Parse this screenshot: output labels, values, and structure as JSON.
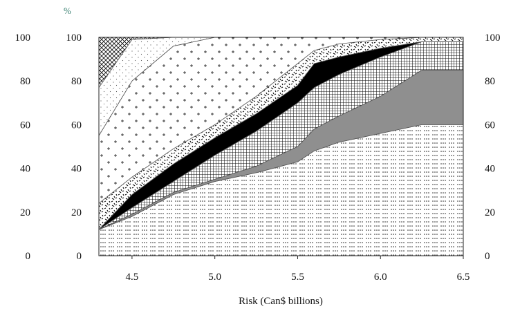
{
  "chart_data": {
    "type": "area",
    "stacked": true,
    "x": [
      4.3,
      4.5,
      4.75,
      5.0,
      5.25,
      5.5,
      5.6,
      5.75,
      6.0,
      6.25,
      6.5
    ],
    "xlim": [
      4.3,
      6.5
    ],
    "ylim": [
      0,
      100
    ],
    "x_ticks": [
      "4.5",
      "5.0",
      "5.5",
      "6.0",
      "6.5"
    ],
    "y_ticks_left_outer": [
      "0",
      "20",
      "40",
      "60",
      "80",
      "100"
    ],
    "y_ticks_left_inner": [
      "0",
      "20",
      "40",
      "60",
      "80",
      "100"
    ],
    "y_ticks_right": [
      "0",
      "20",
      "40",
      "60",
      "80",
      "100"
    ],
    "y_unit": "%",
    "xlabel": "Risk (Can$ billions)",
    "grid": false,
    "legend": "none",
    "series": [
      {
        "pattern": "dots-fine",
        "cumulative": [
          12,
          18,
          28,
          34,
          38,
          43,
          48,
          52,
          56,
          60,
          60
        ]
      },
      {
        "pattern": "solid-gray",
        "cumulative": [
          12,
          19,
          29,
          35,
          41,
          50,
          58,
          64,
          73,
          85,
          85
        ]
      },
      {
        "pattern": "crosshatch-grid",
        "cumulative": [
          12,
          22,
          34,
          46,
          57,
          70,
          77,
          83,
          91,
          98,
          98
        ]
      },
      {
        "pattern": "solid-black",
        "cumulative": [
          12,
          28,
          42,
          54,
          65,
          78,
          88,
          91,
          95,
          98,
          98
        ]
      },
      {
        "pattern": "confetti",
        "cumulative": [
          24,
          36,
          49,
          60,
          73,
          88,
          94,
          97,
          99,
          100,
          100
        ]
      },
      {
        "pattern": "plus",
        "cumulative": [
          55,
          80,
          96,
          100,
          100,
          100,
          100,
          100,
          100,
          100,
          100
        ]
      },
      {
        "pattern": "dots-sparse",
        "cumulative": [
          77,
          99,
          100,
          100,
          100,
          100,
          100,
          100,
          100,
          100,
          100
        ]
      },
      {
        "pattern": "diagonal-crosshatch",
        "cumulative": [
          100,
          100,
          100,
          100,
          100,
          100,
          100,
          100,
          100,
          100,
          100
        ]
      }
    ],
    "colors": {
      "gray": "#8f8f8f",
      "black": "#000000",
      "line": "#555555"
    }
  }
}
